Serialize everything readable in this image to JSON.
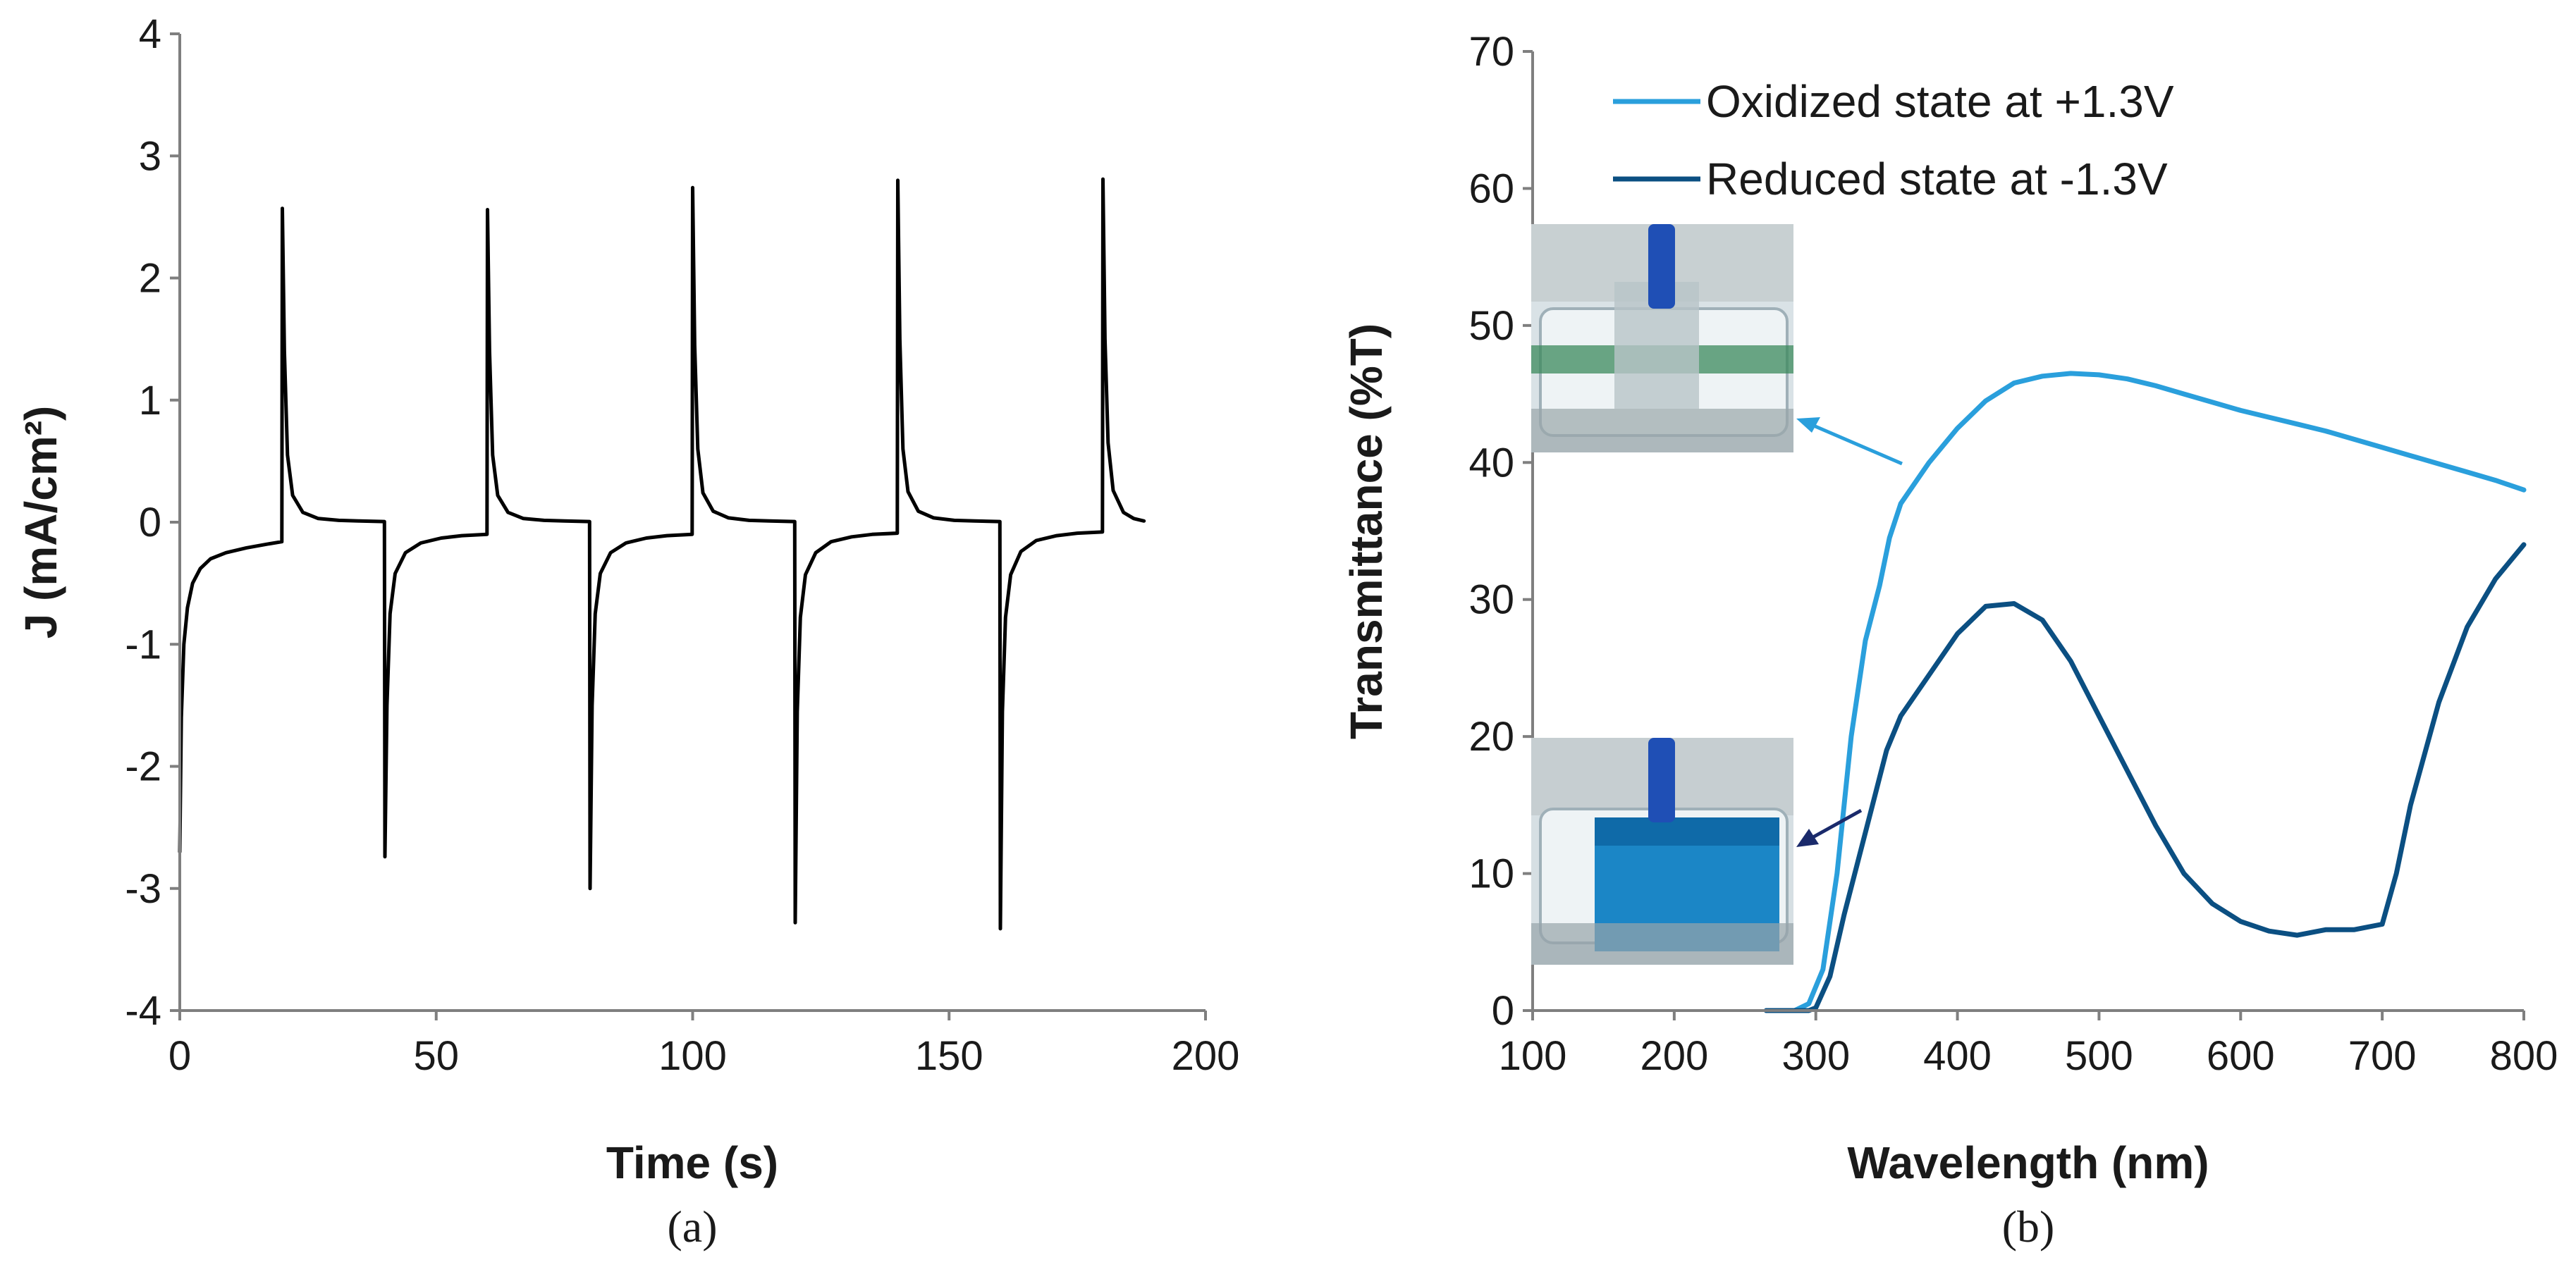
{
  "chart_data": [
    {
      "type": "line",
      "panel_label": "(a)",
      "xlabel": "Time (s)",
      "ylabel": "J (mA/cm²)",
      "xlim": [
        0,
        200
      ],
      "ylim": [
        -4,
        4
      ],
      "xticks": [
        0,
        50,
        100,
        150,
        200
      ],
      "yticks": [
        -4,
        -3,
        -2,
        -1,
        0,
        1,
        2,
        3,
        4
      ],
      "grid": false,
      "series": [
        {
          "color": "#000000",
          "x": [
            0,
            0.3,
            0.8,
            1.5,
            2.5,
            4,
            6,
            9,
            13,
            17,
            19.9,
            20,
            20.4,
            21,
            22,
            24,
            27,
            31,
            35,
            39.9,
            40,
            40.4,
            41,
            42,
            44,
            47,
            51,
            55,
            59.9,
            60,
            60.4,
            61,
            62,
            64,
            67,
            71,
            75,
            79.9,
            80,
            80.4,
            81,
            82,
            84,
            87,
            91,
            95,
            99.9,
            100,
            100.4,
            101,
            102,
            104,
            107,
            111,
            115,
            119.9,
            120,
            120.4,
            121,
            122,
            124,
            127,
            131,
            135,
            139.9,
            140,
            140.4,
            141,
            142,
            144,
            147,
            151,
            155,
            159.9,
            160,
            160.4,
            161,
            162,
            164,
            167,
            171,
            175,
            179.9,
            180,
            180.4,
            181,
            182,
            184,
            186,
            188
          ],
          "y": [
            -2.7,
            -1.6,
            -1.0,
            -0.7,
            -0.5,
            -0.38,
            -0.3,
            -0.25,
            -0.21,
            -0.18,
            -0.16,
            2.57,
            1.4,
            0.55,
            0.22,
            0.08,
            0.03,
            0.015,
            0.01,
            0.005,
            -2.74,
            -1.5,
            -0.75,
            -0.42,
            -0.25,
            -0.17,
            -0.13,
            -0.11,
            -0.1,
            2.56,
            1.4,
            0.55,
            0.22,
            0.08,
            0.03,
            0.015,
            0.01,
            0.005,
            -3.0,
            -1.5,
            -0.75,
            -0.42,
            -0.25,
            -0.17,
            -0.13,
            -0.11,
            -0.1,
            2.74,
            1.45,
            0.6,
            0.24,
            0.09,
            0.035,
            0.015,
            0.01,
            0.005,
            -3.28,
            -1.55,
            -0.78,
            -0.43,
            -0.25,
            -0.16,
            -0.12,
            -0.1,
            -0.09,
            2.8,
            1.5,
            0.6,
            0.25,
            0.09,
            0.035,
            0.015,
            0.01,
            0.005,
            -3.33,
            -1.55,
            -0.78,
            -0.43,
            -0.24,
            -0.15,
            -0.11,
            -0.09,
            -0.08,
            2.81,
            1.5,
            0.65,
            0.26,
            0.08,
            0.03,
            0.01
          ]
        }
      ]
    },
    {
      "type": "line",
      "panel_label": "(b)",
      "xlabel": "Wavelength (nm)",
      "ylabel": "Transmittance (%T)",
      "xlim": [
        100,
        800
      ],
      "ylim": [
        0,
        70
      ],
      "xticks": [
        100,
        200,
        300,
        400,
        500,
        600,
        700,
        800
      ],
      "yticks": [
        0,
        10,
        20,
        30,
        40,
        50,
        60,
        70
      ],
      "grid": false,
      "legend": "top-left",
      "series": [
        {
          "name": "Oxidized state at +1.3V",
          "color": "#2a9fdc",
          "x": [
            265,
            285,
            295,
            305,
            315,
            325,
            335,
            345,
            352,
            360,
            370,
            380,
            400,
            420,
            440,
            460,
            480,
            500,
            520,
            540,
            560,
            580,
            600,
            620,
            640,
            660,
            680,
            700,
            720,
            740,
            760,
            780,
            800
          ],
          "y": [
            0,
            0,
            0.5,
            3,
            10,
            20,
            27,
            31,
            34.5,
            37,
            38.5,
            40,
            42.5,
            44.5,
            45.8,
            46.3,
            46.5,
            46.4,
            46.1,
            45.6,
            45,
            44.4,
            43.8,
            43.3,
            42.8,
            42.3,
            41.7,
            41.1,
            40.5,
            39.9,
            39.3,
            38.7,
            38
          ]
        },
        {
          "name": "Reduced state at -1.3V",
          "color": "#0b4f82",
          "x": [
            265,
            285,
            295,
            300,
            310,
            320,
            330,
            340,
            350,
            360,
            380,
            400,
            420,
            440,
            460,
            480,
            500,
            520,
            540,
            560,
            580,
            600,
            620,
            640,
            660,
            680,
            700,
            710,
            720,
            740,
            760,
            780,
            800
          ],
          "y": [
            0,
            0,
            0,
            0.2,
            2.5,
            7,
            11,
            15,
            19,
            21.5,
            24.5,
            27.5,
            29.5,
            29.7,
            28.5,
            25.5,
            21.5,
            17.5,
            13.5,
            10,
            7.8,
            6.5,
            5.8,
            5.5,
            5.9,
            5.9,
            6.3,
            10,
            15,
            22.5,
            28,
            31.5,
            34
          ]
        }
      ]
    }
  ]
}
